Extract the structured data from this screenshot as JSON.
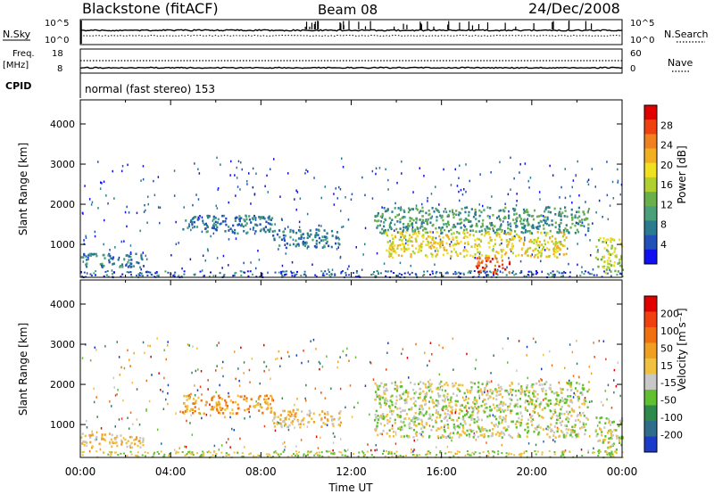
{
  "header": {
    "station": "Blackstone (fitACF)",
    "beam": "Beam 08",
    "date": "24/Dec/2008"
  },
  "strip": {
    "nsky_label": "N.Sky",
    "nsky_ticks": [
      "10^5",
      "10^0"
    ],
    "nsearch_label": "N.Search",
    "nsearch_ticks": [
      "10^5",
      "10^0"
    ],
    "freq_label_1": "Freq.",
    "freq_label_2": "[MHz]",
    "freq_ticks": [
      "18",
      "8"
    ],
    "nave_label": "Nave",
    "nave_ticks": [
      "60",
      "0"
    ],
    "cpid_label": "CPID",
    "cpid_value": "normal (fast stereo) 153"
  },
  "chart_data": [
    {
      "type": "heatmap",
      "name": "power-panel",
      "ylabel": "Slant Range [km]",
      "yticks": [
        1000,
        2000,
        3000,
        4000
      ],
      "ylim": [
        180,
        4600
      ],
      "xlim": [
        0,
        24
      ],
      "colorbar": {
        "label": "Power [dB]",
        "ticks": [
          "4",
          "8",
          "12",
          "16",
          "20",
          "24",
          "28"
        ],
        "colors": [
          "#1010f0",
          "#2050b8",
          "#2a7a90",
          "#4aa078",
          "#6ab04a",
          "#b0d030",
          "#f0e020",
          "#f0b020",
          "#f08020",
          "#f04010",
          "#e00000"
        ]
      },
      "regions": [
        {
          "t0": 0.0,
          "t1": 2.8,
          "r0": 450,
          "r1": 800,
          "level": 2
        },
        {
          "t0": 4.5,
          "t1": 8.5,
          "r0": 1300,
          "r1": 1750,
          "level": 2
        },
        {
          "t0": 8.5,
          "t1": 11.5,
          "r0": 950,
          "r1": 1400,
          "level": 2
        },
        {
          "t0": 13.0,
          "t1": 22.5,
          "r0": 1300,
          "r1": 1950,
          "level": 3
        },
        {
          "t0": 13.5,
          "t1": 21.5,
          "r0": 700,
          "r1": 1350,
          "level": 6
        },
        {
          "t0": 17.5,
          "t1": 19.0,
          "r0": 300,
          "r1": 700,
          "level": 9
        },
        {
          "t0": 22.8,
          "t1": 24.0,
          "r0": 300,
          "r1": 1200,
          "level": 5
        }
      ]
    },
    {
      "type": "heatmap",
      "name": "velocity-panel",
      "ylabel": "Slant Range [km]",
      "yticks": [
        1000,
        2000,
        3000,
        4000
      ],
      "ylim": [
        180,
        4600
      ],
      "xlim": [
        0,
        24
      ],
      "xlabel": "Time UT",
      "xticks": [
        "00:00",
        "04:00",
        "08:00",
        "12:00",
        "16:00",
        "20:00",
        "00:00"
      ],
      "colorbar": {
        "label": "Velocity [m s⁻¹]",
        "ticks": [
          "200",
          "100",
          "50",
          "15",
          "-15",
          "-50",
          "-100",
          "-200"
        ],
        "colors": [
          "#1a3cc8",
          "#2e6e8a",
          "#2e8a4a",
          "#60c030",
          "#c8c8c8",
          "#f0c040",
          "#f0a020",
          "#f07010",
          "#f04010",
          "#e00000"
        ]
      },
      "regions": [
        {
          "t0": 0.0,
          "t1": 2.8,
          "r0": 450,
          "r1": 800,
          "level": 5
        },
        {
          "t0": 4.5,
          "t1": 8.5,
          "r0": 1300,
          "r1": 1750,
          "level": 6
        },
        {
          "t0": 8.5,
          "t1": 11.5,
          "r0": 950,
          "r1": 1400,
          "level": 5
        },
        {
          "t0": 13.0,
          "t1": 22.5,
          "r0": 700,
          "r1": 2100,
          "level": 4
        },
        {
          "t0": 22.8,
          "t1": 24.0,
          "r0": 300,
          "r1": 1200,
          "level": 4
        }
      ]
    }
  ]
}
